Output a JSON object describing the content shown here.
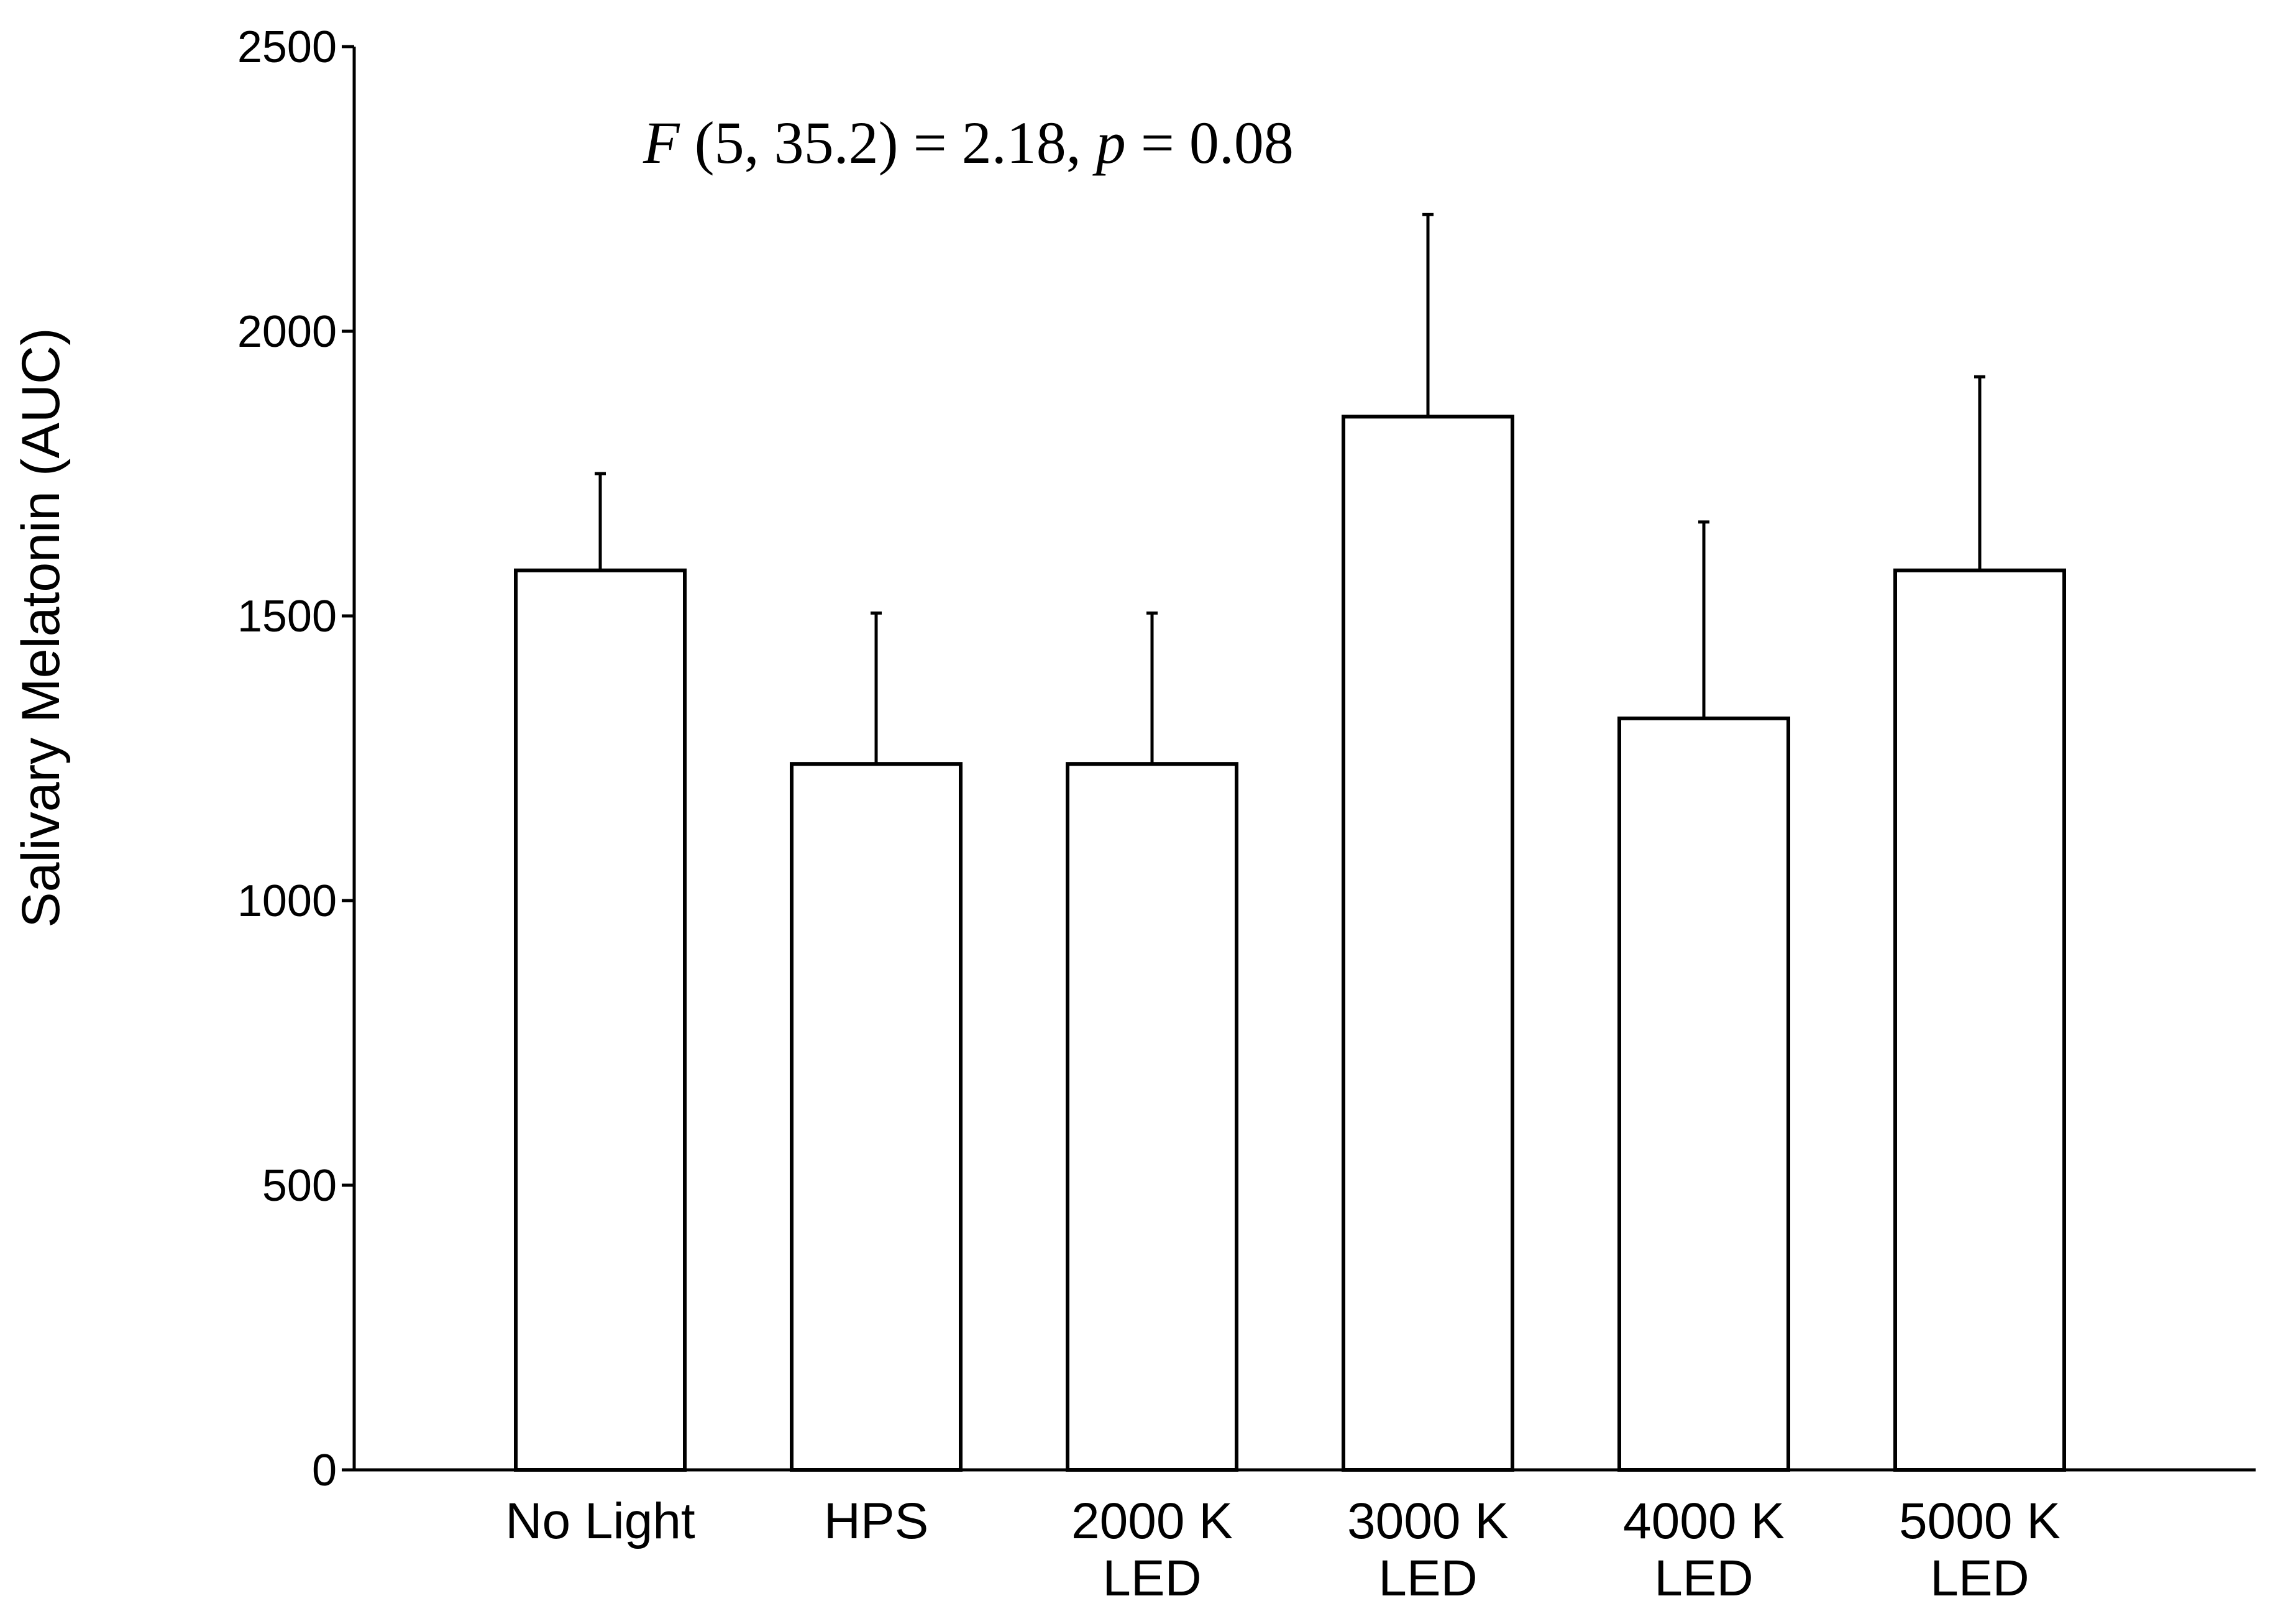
{
  "chart_data": {
    "type": "bar",
    "title": "",
    "xlabel": "",
    "ylabel": "Salivary Melatonin (AUC)",
    "ylim": [
      0,
      2500
    ],
    "yticks": [
      0,
      500,
      1000,
      1500,
      2000,
      2500
    ],
    "grid": false,
    "legend": "none",
    "annotation": {
      "stat_symbol": "F",
      "df": " (5, 35.2) = 2.18, ",
      "p_symbol": "p",
      "p_value": " = 0.08"
    },
    "categories": [
      [
        "No Light"
      ],
      [
        "HPS"
      ],
      [
        "2000 K",
        "LED"
      ],
      [
        "3000 K",
        "LED"
      ],
      [
        "4000 K",
        "LED"
      ],
      [
        "5000 K",
        "LED"
      ]
    ],
    "values": [
      1580,
      1240,
      1240,
      1850,
      1320,
      1580
    ],
    "error_upper": [
      1750,
      1505,
      1505,
      2205,
      1665,
      1920
    ],
    "colors": {
      "bar_fill": "#ffffff",
      "stroke": "#000000"
    }
  }
}
